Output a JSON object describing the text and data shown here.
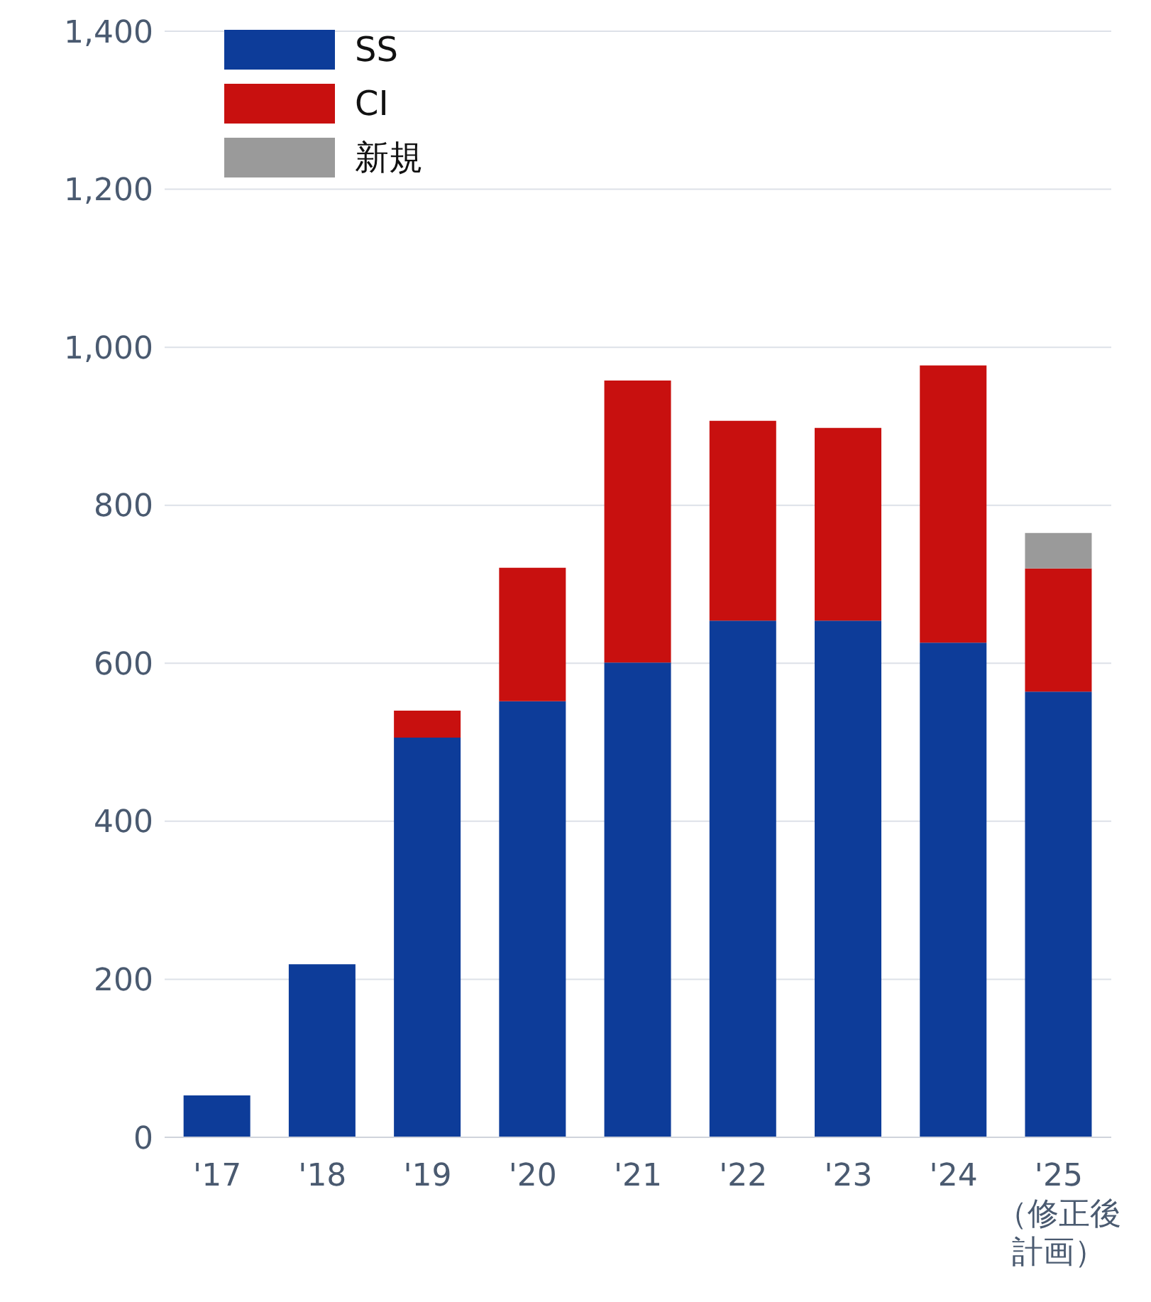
{
  "chart_data": {
    "type": "bar",
    "stacked": true,
    "categories": [
      "'17",
      "'18",
      "'19",
      "'20",
      "'21",
      "'22",
      "'23",
      "'24",
      "'25\n（修正後計画）"
    ],
    "series": [
      {
        "name": "SS",
        "color": "#0d3c99",
        "values": [
          53,
          219,
          506,
          552,
          601,
          654,
          654,
          626,
          564
        ]
      },
      {
        "name": "CI",
        "color": "#c8100f",
        "values": [
          null,
          null,
          34,
          169,
          357,
          253,
          244,
          351,
          156
        ]
      },
      {
        "name": "新規",
        "color": "#9a9a9a",
        "values": [
          null,
          null,
          null,
          null,
          null,
          null,
          null,
          null,
          45
        ]
      }
    ],
    "ylim": [
      0,
      1400
    ],
    "yticks": [
      0,
      200,
      400,
      600,
      800,
      {
        "value": 1000,
        "label": "1,000"
      },
      {
        "value": 1200,
        "label": "1,200"
      },
      {
        "value": 1400,
        "label": "1,400"
      }
    ],
    "grid": "y",
    "legend": "top left"
  }
}
